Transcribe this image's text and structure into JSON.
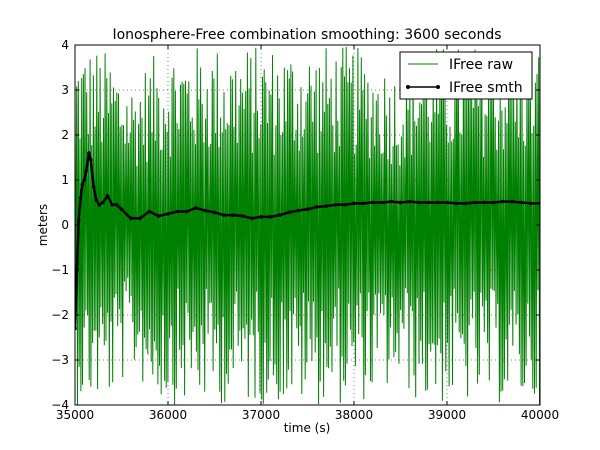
{
  "chart_data": {
    "type": "line",
    "title": "Ionosphere-Free combination smoothing: 3600 seconds",
    "xlabel": "time (s)",
    "ylabel": "meters",
    "xlim": [
      35000,
      40000
    ],
    "ylim": [
      -4,
      4
    ],
    "xticks": [
      35000,
      36000,
      37000,
      38000,
      39000,
      40000
    ],
    "yticks": [
      -4,
      -3,
      -2,
      -1,
      0,
      1,
      2,
      3,
      4
    ],
    "xtick_labels": [
      "35000",
      "36000",
      "37000",
      "38000",
      "39000",
      "40000"
    ],
    "ytick_labels": [
      "−4",
      "−3",
      "−2",
      "−1",
      "0",
      "1",
      "2",
      "3",
      "4"
    ],
    "grid": true,
    "legend_position": "top-right",
    "series": [
      {
        "name": "IFree raw",
        "color": "#008000",
        "style": "line",
        "envelope": {
          "x": [
            35000,
            35100,
            35200,
            35400,
            35600,
            35800,
            36000,
            36500,
            37000,
            37500,
            38000,
            38500,
            38700,
            39000,
            39500,
            40000
          ],
          "y_min": [
            -4,
            -4,
            -4,
            -3.9,
            -3.2,
            -3.8,
            -4,
            -4,
            -4,
            -4,
            -4,
            -3.6,
            -4,
            -4,
            -4,
            -4
          ],
          "y_max": [
            4,
            4,
            4,
            3.8,
            3.2,
            3.7,
            4,
            4,
            4,
            4,
            4,
            3.4,
            4,
            4,
            4,
            4
          ]
        }
      },
      {
        "name": "IFree smth",
        "color": "#000000",
        "style": "line-marker",
        "x": [
          35000,
          35020,
          35040,
          35060,
          35080,
          35100,
          35120,
          35150,
          35170,
          35200,
          35230,
          35260,
          35300,
          35350,
          35400,
          35450,
          35500,
          35600,
          35700,
          35800,
          35900,
          36000,
          36100,
          36200,
          36300,
          36400,
          36500,
          36600,
          36700,
          36800,
          36900,
          37000,
          37100,
          37200,
          37300,
          37400,
          37500,
          37600,
          37700,
          37800,
          37900,
          38000,
          38100,
          38200,
          38300,
          38400,
          38500,
          38600,
          38700,
          38800,
          38900,
          39000,
          39100,
          39200,
          39300,
          39400,
          39500,
          39600,
          39700,
          39800,
          39900,
          40000
        ],
        "y": [
          -2.3,
          -1.0,
          0.1,
          0.6,
          0.9,
          1.0,
          1.2,
          1.6,
          1.45,
          0.85,
          0.55,
          0.45,
          0.5,
          0.65,
          0.45,
          0.45,
          0.35,
          0.15,
          0.15,
          0.3,
          0.2,
          0.25,
          0.3,
          0.3,
          0.38,
          0.32,
          0.28,
          0.22,
          0.22,
          0.2,
          0.15,
          0.18,
          0.18,
          0.22,
          0.28,
          0.32,
          0.35,
          0.4,
          0.42,
          0.45,
          0.45,
          0.48,
          0.48,
          0.5,
          0.5,
          0.52,
          0.5,
          0.52,
          0.5,
          0.5,
          0.5,
          0.5,
          0.48,
          0.48,
          0.5,
          0.5,
          0.5,
          0.52,
          0.52,
          0.5,
          0.48,
          0.48
        ]
      }
    ]
  }
}
